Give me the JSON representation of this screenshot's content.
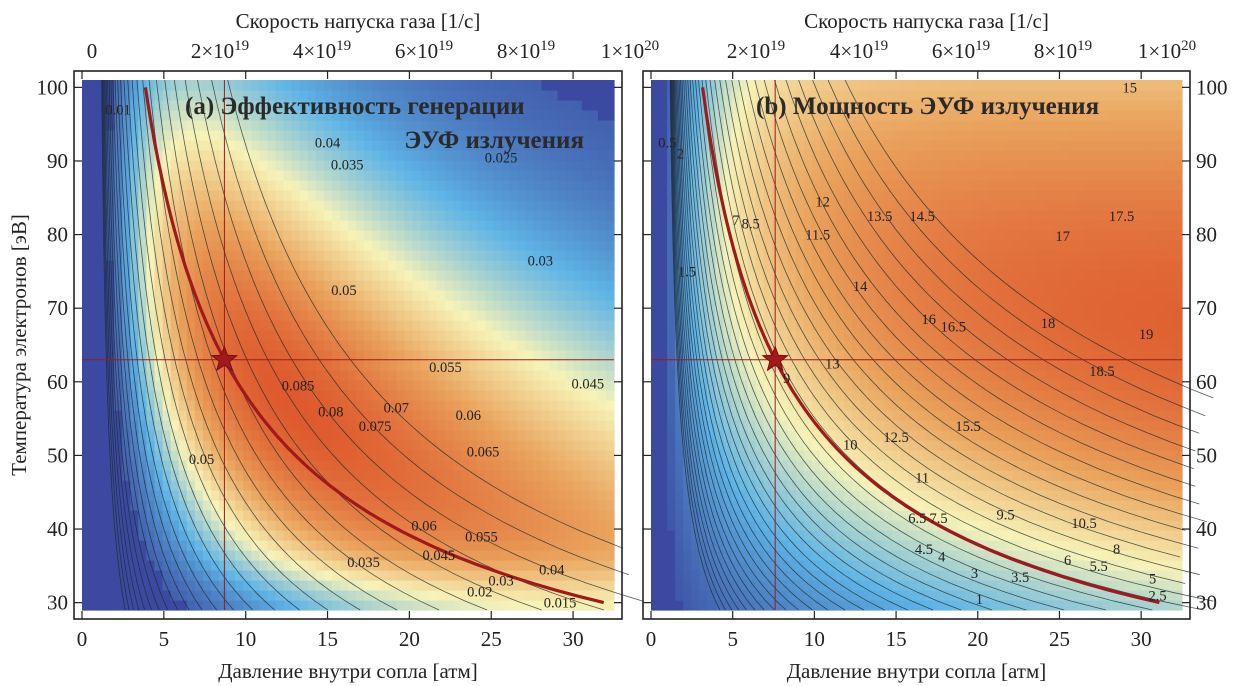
{
  "chart_data": [
    {
      "type": "heatmap",
      "panel": "a",
      "title": "(a) Эффективность генерации",
      "title2": "ЭУФ излучения",
      "xlabel": "Давление внутри сопла [атм]",
      "ylabel": "Температура электронов [эВ]",
      "x2label": "Скорость напуска газа [1/с]",
      "xlim": [
        0,
        32.5
      ],
      "ylim": [
        29,
        101
      ],
      "xticks": [
        0,
        5,
        10,
        15,
        20,
        25,
        30
      ],
      "yticks": [
        30,
        40,
        50,
        60,
        70,
        80,
        90,
        100
      ],
      "x2ticks": [
        "0",
        "2×10",
        "4×10",
        "6×10",
        "8×10",
        "1×10"
      ],
      "x2exp": [
        "",
        "19",
        "19",
        "19",
        "19",
        "20"
      ],
      "colormap": [
        "#3b4aa0",
        "#5fb4e6",
        "#f7f3b8",
        "#e9a25c",
        "#de5a2e"
      ],
      "optimum_point": {
        "x": 8.7,
        "y": 63
      },
      "contour_labels": [
        {
          "text": "0.01",
          "x": 2.2,
          "y": 97
        },
        {
          "text": "0.04",
          "x": 15.0,
          "y": 92.5
        },
        {
          "text": "0.035",
          "x": 16.2,
          "y": 89.5
        },
        {
          "text": "0.025",
          "x": 25.6,
          "y": 90.5
        },
        {
          "text": "0.05",
          "x": 16.0,
          "y": 72.5
        },
        {
          "text": "0.03",
          "x": 28.0,
          "y": 76.5
        },
        {
          "text": "0.085",
          "x": 13.2,
          "y": 59.5
        },
        {
          "text": "0.08",
          "x": 15.2,
          "y": 56.0
        },
        {
          "text": "0.075",
          "x": 17.9,
          "y": 54.0
        },
        {
          "text": "0.07",
          "x": 19.2,
          "y": 56.5
        },
        {
          "text": "0.055",
          "x": 22.2,
          "y": 62.0
        },
        {
          "text": "0.06",
          "x": 23.6,
          "y": 55.5
        },
        {
          "text": "0.065",
          "x": 24.5,
          "y": 50.5
        },
        {
          "text": "0.045",
          "x": 30.9,
          "y": 59.8
        },
        {
          "text": "0.05",
          "x": 7.3,
          "y": 49.5
        },
        {
          "text": "0.06",
          "x": 20.9,
          "y": 40.5
        },
        {
          "text": "0.055",
          "x": 24.4,
          "y": 39.0
        },
        {
          "text": "0.045",
          "x": 21.8,
          "y": 36.5
        },
        {
          "text": "0.035",
          "x": 17.2,
          "y": 35.5
        },
        {
          "text": "0.04",
          "x": 28.7,
          "y": 34.5
        },
        {
          "text": "0.03",
          "x": 25.6,
          "y": 33.0
        },
        {
          "text": "0.02",
          "x": 24.3,
          "y": 31.5
        },
        {
          "text": "0.015",
          "x": 29.2,
          "y": 30.0
        }
      ]
    },
    {
      "type": "heatmap",
      "panel": "b",
      "title": "(b)  Мощность ЭУФ излучения",
      "xlabel": "Давление внутри сопла [атм]",
      "ylabel": "",
      "x2label": "Скорость напуска газа [1/с]",
      "xlim": [
        0,
        32.5
      ],
      "ylim": [
        29,
        101
      ],
      "xticks": [
        0,
        5,
        10,
        15,
        20,
        25,
        30
      ],
      "yticks": [
        30,
        40,
        50,
        60,
        70,
        80,
        90,
        100
      ],
      "x2ticks": [
        "2×10",
        "4×10",
        "6×10",
        "8×10",
        "1×10"
      ],
      "x2exp": [
        "19",
        "19",
        "19",
        "19",
        "20"
      ],
      "colormap": [
        "#3b4aa0",
        "#5fb4e6",
        "#f7f3b8",
        "#e9a25c",
        "#de5a2e"
      ],
      "optimum_point": {
        "x": 7.6,
        "y": 63
      },
      "contour_labels": [
        {
          "text": "15",
          "x": 29.3,
          "y": 100
        },
        {
          "text": "0.5",
          "x": 1.0,
          "y": 92.5
        },
        {
          "text": "2",
          "x": 1.8,
          "y": 91.0
        },
        {
          "text": "12",
          "x": 10.5,
          "y": 84.5
        },
        {
          "text": "13.5",
          "x": 14.0,
          "y": 82.5
        },
        {
          "text": "14.5",
          "x": 16.6,
          "y": 82.5
        },
        {
          "text": "7",
          "x": 5.2,
          "y": 82.0
        },
        {
          "text": "8.5",
          "x": 6.1,
          "y": 81.5
        },
        {
          "text": "11.5",
          "x": 10.2,
          "y": 80.0
        },
        {
          "text": "17.5",
          "x": 28.8,
          "y": 82.5
        },
        {
          "text": "17",
          "x": 25.2,
          "y": 79.8
        },
        {
          "text": "1.5",
          "x": 2.2,
          "y": 75.0
        },
        {
          "text": "14",
          "x": 12.8,
          "y": 73.0
        },
        {
          "text": "16",
          "x": 17.0,
          "y": 68.5
        },
        {
          "text": "16.5",
          "x": 18.5,
          "y": 67.5
        },
        {
          "text": "18",
          "x": 24.3,
          "y": 68.0
        },
        {
          "text": "19",
          "x": 30.3,
          "y": 66.5
        },
        {
          "text": "18.5",
          "x": 27.6,
          "y": 61.5
        },
        {
          "text": "13",
          "x": 11.1,
          "y": 62.5
        },
        {
          "text": "9",
          "x": 8.3,
          "y": 60.5
        },
        {
          "text": "15.5",
          "x": 19.4,
          "y": 54.0
        },
        {
          "text": "12.5",
          "x": 15.0,
          "y": 52.5
        },
        {
          "text": "10",
          "x": 12.2,
          "y": 51.5
        },
        {
          "text": "11",
          "x": 16.6,
          "y": 47.0
        },
        {
          "text": "6.5",
          "x": 16.3,
          "y": 41.5
        },
        {
          "text": "7.5",
          "x": 17.6,
          "y": 41.5
        },
        {
          "text": "9.5",
          "x": 21.7,
          "y": 42.0
        },
        {
          "text": "10.5",
          "x": 26.5,
          "y": 40.8
        },
        {
          "text": "4.5",
          "x": 16.7,
          "y": 37.3
        },
        {
          "text": "4",
          "x": 17.8,
          "y": 36.3
        },
        {
          "text": "8",
          "x": 28.5,
          "y": 37.3
        },
        {
          "text": "6",
          "x": 25.5,
          "y": 35.8
        },
        {
          "text": "5.5",
          "x": 27.4,
          "y": 35.0
        },
        {
          "text": "3",
          "x": 19.8,
          "y": 34.0
        },
        {
          "text": "3.5",
          "x": 22.6,
          "y": 33.5
        },
        {
          "text": "5",
          "x": 30.7,
          "y": 33.3
        },
        {
          "text": "2.5",
          "x": 31.0,
          "y": 31.0
        },
        {
          "text": "1",
          "x": 20.1,
          "y": 30.5
        }
      ]
    }
  ]
}
